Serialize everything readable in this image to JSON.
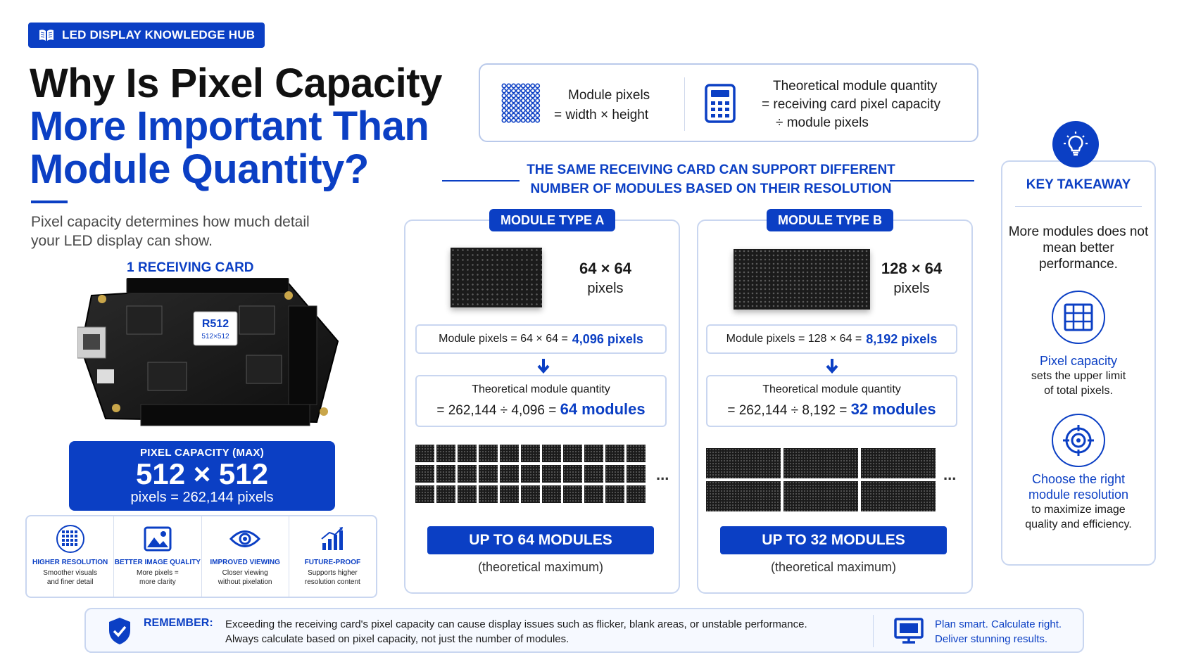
{
  "header": {
    "badge": "LED DISPLAY KNOWLEDGE HUB",
    "title_line1": "Why Is Pixel Capacity",
    "title_line2": "More Important Than",
    "title_line3": "Module Quantity?",
    "subtitle": "Pixel capacity determines how much detail your LED display can show."
  },
  "receiving_card": {
    "label": "1 RECEIVING CARD",
    "chip_label": "R512",
    "chip_sub": "512×512",
    "capacity_title": "PIXEL CAPACITY (MAX)",
    "capacity_value": "512 × 512",
    "capacity_pixels": "pixels = 262,144 pixels"
  },
  "benefits": [
    {
      "icon": "grid-sphere-icon",
      "title": "HIGHER RESOLUTION",
      "desc_l1": "Smoother visuals",
      "desc_l2": "and finer detail"
    },
    {
      "icon": "image-icon",
      "title": "BETTER IMAGE QUALITY",
      "desc_l1": "More pixels =",
      "desc_l2": "more clarity"
    },
    {
      "icon": "eye-icon",
      "title": "IMPROVED VIEWING",
      "desc_l1": "Closer viewing",
      "desc_l2": "without pixelation"
    },
    {
      "icon": "growth-chart-icon",
      "title": "FUTURE-PROOF",
      "desc_l1": "Supports higher",
      "desc_l2": "resolution content"
    }
  ],
  "formulas": {
    "f1_line1": "Module pixels",
    "f1_line2": "= width × height",
    "f2_line1": "Theoretical module quantity",
    "f2_line2": "= receiving card pixel capacity",
    "f2_line3": "÷ module pixels"
  },
  "section_header": {
    "line1": "THE SAME RECEIVING CARD CAN SUPPORT DIFFERENT",
    "line2": "NUMBER OF MODULES BASED ON THEIR RESOLUTION"
  },
  "module_a": {
    "tag": "MODULE TYPE A",
    "resolution": "64 × 64",
    "pixels_word": "pixels",
    "mp_label": "Module pixels = 64 × 64 =",
    "mp_value": "4,096 pixels",
    "tq_label": "Theoretical module quantity",
    "tq_expr": "= 262,144 ÷ 4,096 =",
    "tq_value": "64 modules",
    "up_to": "UP TO 64 MODULES",
    "note": "(theoretical maximum)",
    "ellipsis": "..."
  },
  "module_b": {
    "tag": "MODULE TYPE B",
    "resolution": "128 × 64",
    "pixels_word": "pixels",
    "mp_label": "Module pixels = 128 × 64 =",
    "mp_value": "8,192 pixels",
    "tq_label": "Theoretical module quantity",
    "tq_expr": "= 262,144 ÷ 8,192 =",
    "tq_value": "32 modules",
    "up_to": "UP TO 32 MODULES",
    "note": "(theoretical maximum)",
    "ellipsis": "..."
  },
  "key_takeaway": {
    "title": "KEY TAKEAWAY",
    "main": "More modules does not mean better performance.",
    "item1_title": "Pixel capacity",
    "item1_desc": "sets the upper limit of total pixels.",
    "item2_title": "Choose the right module resolution",
    "item2_desc": "to maximize image quality and efficiency."
  },
  "remember": {
    "label": "REMEMBER:",
    "line1": "Exceeding the receiving card's pixel capacity can cause display issues such as flicker, blank areas, or unstable performance.",
    "line2": "Always calculate based on pixel capacity, not just the number of modules.",
    "tag_line1": "Plan smart. Calculate right.",
    "tag_line2": "Deliver stunning results."
  },
  "colors": {
    "accent": "#0b3fc4",
    "border": "#c9d6f0",
    "module": "#1b1b1b"
  }
}
